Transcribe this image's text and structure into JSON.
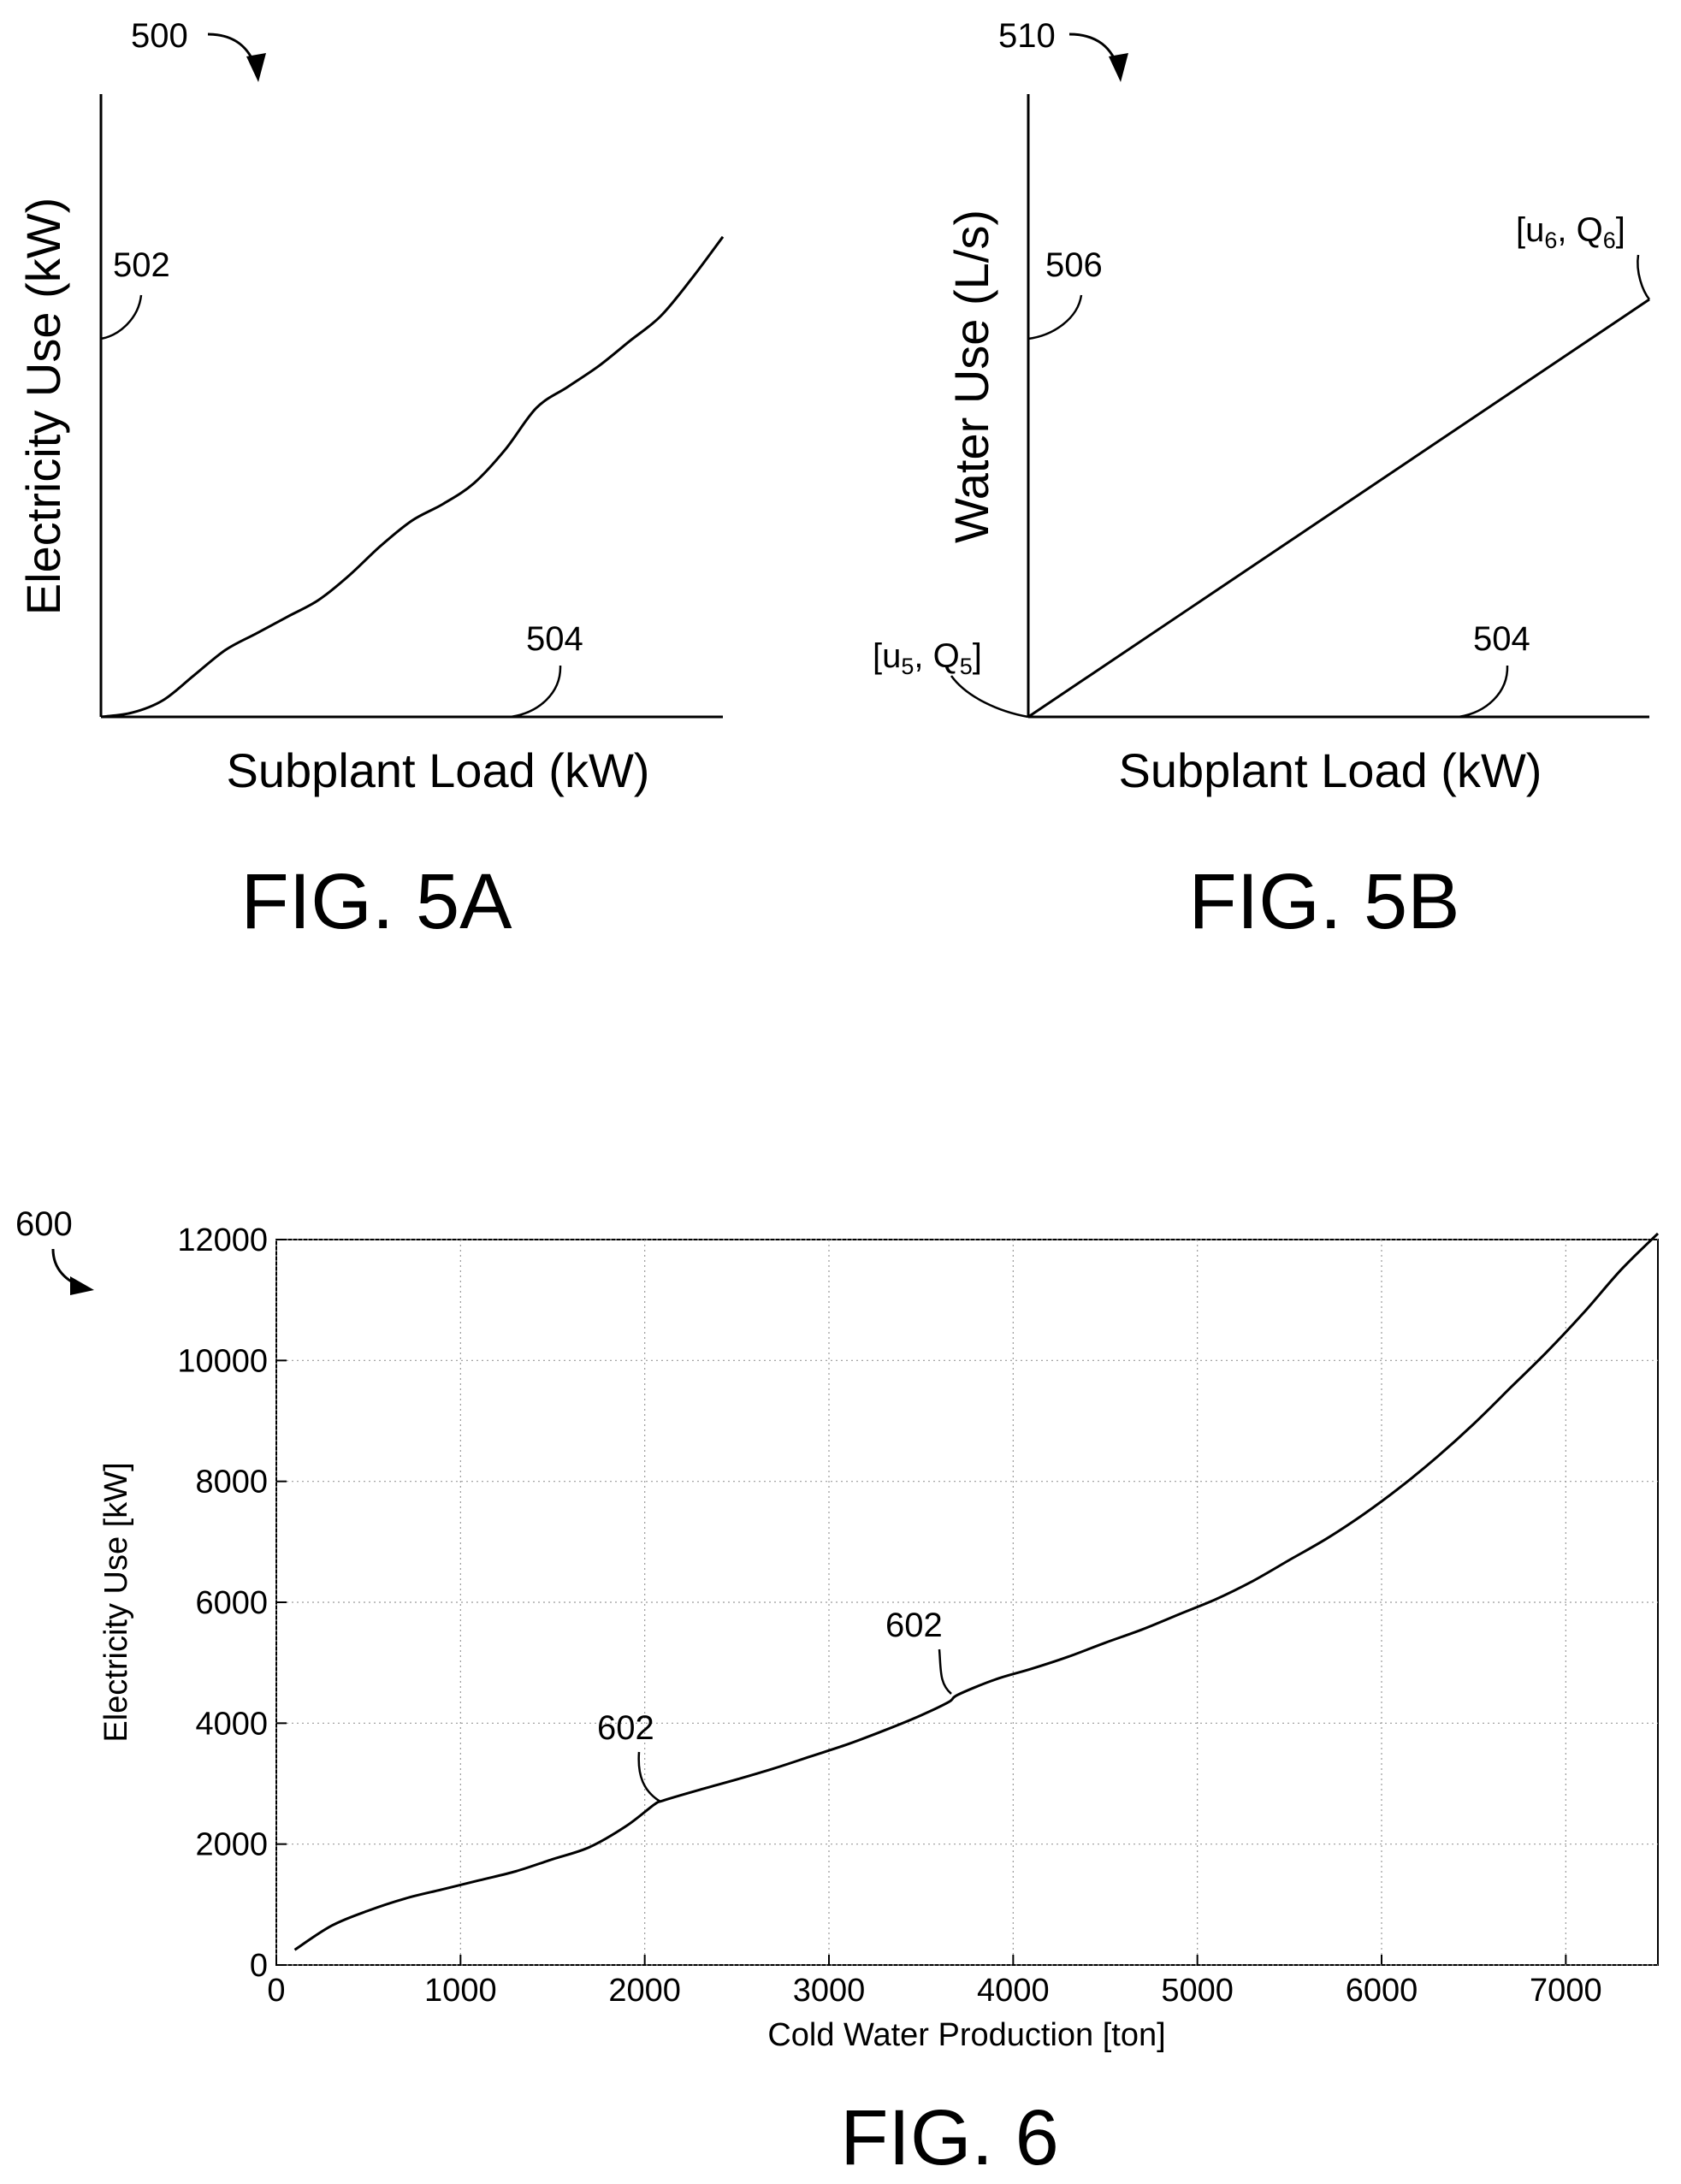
{
  "fig5a": {
    "ref_number": "500",
    "axis_y_label": "Electricity Use (kW)",
    "axis_x_label": "Subplant Load (kW)",
    "y_axis_ref": "502",
    "x_axis_ref": "504",
    "caption": "FIG. 5A"
  },
  "fig5b": {
    "ref_number": "510",
    "axis_y_label": "Water Use (L/s)",
    "axis_x_label": "Subplant Load (kW)",
    "y_axis_ref": "506",
    "x_axis_ref": "504",
    "start_point": {
      "u": "u",
      "u_sub": "5",
      "q": "Q",
      "q_sub": "5"
    },
    "end_point": {
      "u": "u",
      "u_sub": "6",
      "q": "Q",
      "q_sub": "6"
    },
    "caption": "FIG. 5B"
  },
  "fig6": {
    "ref_number": "600",
    "curve_ref": "602",
    "caption": "FIG. 6"
  },
  "chart_data": [
    {
      "type": "line",
      "title": "",
      "xlabel": "Subplant Load (kW)",
      "ylabel": "Electricity Use (kW)",
      "x": [
        0.0,
        0.05,
        0.1,
        0.15,
        0.2,
        0.25,
        0.3,
        0.35,
        0.4,
        0.45,
        0.5,
        0.55,
        0.6,
        0.65,
        0.7,
        0.75,
        0.8,
        0.85,
        0.9,
        0.95,
        1.0
      ],
      "y": [
        0.0,
        0.01,
        0.04,
        0.1,
        0.16,
        0.2,
        0.24,
        0.28,
        0.34,
        0.41,
        0.47,
        0.51,
        0.56,
        0.64,
        0.74,
        0.79,
        0.84,
        0.9,
        0.96,
        1.05,
        1.15
      ],
      "grid": false
    },
    {
      "type": "line",
      "title": "",
      "xlabel": "Subplant Load (kW)",
      "ylabel": "Water Use (L/s)",
      "x": [
        0,
        1
      ],
      "y": [
        0,
        1
      ],
      "grid": false
    },
    {
      "type": "line",
      "title": "",
      "xlabel": "Cold Water Production [ton]",
      "ylabel": "Electricity Use [kW]",
      "xlim": [
        0,
        7500
      ],
      "ylim": [
        0,
        12000
      ],
      "xticks": [
        0,
        1000,
        2000,
        3000,
        4000,
        5000,
        6000,
        7000
      ],
      "yticks": [
        0,
        2000,
        4000,
        6000,
        8000,
        10000,
        12000
      ],
      "grid": true,
      "series": [
        {
          "x": [
            100,
            300,
            500,
            700,
            900,
            1100,
            1300,
            1500,
            1700,
            1900,
            2050,
            2100,
            2300,
            2500,
            2700,
            2900,
            3100,
            3300,
            3500,
            3650,
            3700,
            3900,
            4100,
            4300,
            4500,
            4700,
            4900,
            5100,
            5300,
            5500,
            5700,
            5900,
            6100,
            6300,
            6500,
            6700,
            6900,
            7100,
            7300,
            7500
          ],
          "y": [
            250,
            650,
            900,
            1100,
            1250,
            1400,
            1550,
            1750,
            1950,
            2300,
            2650,
            2720,
            2900,
            3070,
            3250,
            3450,
            3650,
            3880,
            4130,
            4350,
            4470,
            4720,
            4900,
            5100,
            5330,
            5550,
            5800,
            6050,
            6350,
            6700,
            7050,
            7450,
            7900,
            8400,
            8950,
            9550,
            10150,
            10800,
            11500,
            12100
          ]
        }
      ]
    }
  ]
}
